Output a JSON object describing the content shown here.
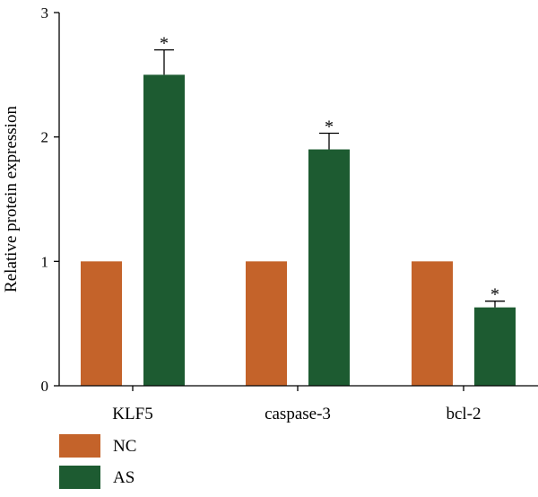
{
  "chart_data": {
    "type": "bar",
    "categories": [
      "KLF5",
      "caspase-3",
      "bcl-2"
    ],
    "series": [
      {
        "name": "NC",
        "color": "#C4632A",
        "values": [
          1.0,
          1.0,
          1.0
        ],
        "errors": [
          0,
          0,
          0
        ],
        "significance": [
          "",
          "",
          ""
        ]
      },
      {
        "name": "AS",
        "color": "#1D5B31",
        "values": [
          2.5,
          1.9,
          0.63
        ],
        "errors": [
          0.2,
          0.13,
          0.05
        ],
        "significance": [
          "*",
          "*",
          "*"
        ]
      }
    ],
    "title": "",
    "xlabel": "",
    "ylabel": "Relative protein expression",
    "ylim": [
      0,
      3
    ],
    "yticks": [
      0,
      1,
      2,
      3
    ],
    "grid": false,
    "legend_position": "bottom-left"
  }
}
